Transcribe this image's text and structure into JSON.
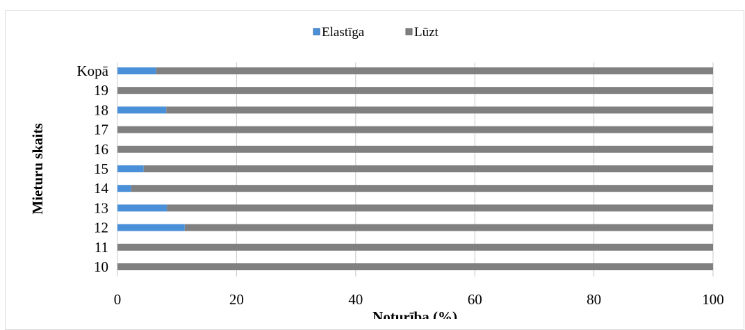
{
  "chart_data": {
    "type": "bar",
    "orientation": "horizontal",
    "stacked": true,
    "xlabel": "Noturība (%)",
    "ylabel": "Mieturu skaits",
    "xlim": [
      0,
      100
    ],
    "xticks": [
      "0",
      "20",
      "40",
      "60",
      "80",
      "100"
    ],
    "grid": true,
    "legend_position": "top",
    "categories": [
      "10",
      "11",
      "12",
      "13",
      "14",
      "15",
      "16",
      "17",
      "18",
      "19",
      "Kopā"
    ],
    "series": [
      {
        "name": "Elastīga",
        "color": "#4a90d9",
        "values": [
          0,
          0,
          11.3,
          8.3,
          2.3,
          4.4,
          0,
          0,
          8.2,
          0,
          6.5
        ]
      },
      {
        "name": "Lūzt",
        "color": "#808080",
        "values": [
          100,
          100,
          88.7,
          91.7,
          97.7,
          95.6,
          100,
          100,
          91.8,
          100,
          93.5
        ]
      }
    ]
  }
}
